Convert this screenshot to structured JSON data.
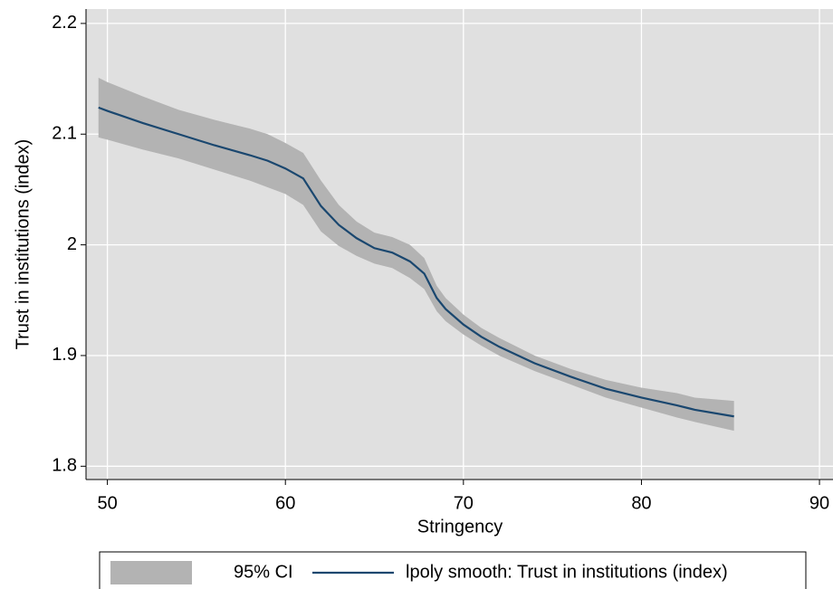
{
  "chart_data": {
    "type": "line",
    "x_label": "Stringency",
    "y_label": "Trust in institutions (index)",
    "x": [
      49.5,
      50,
      52,
      54,
      56,
      58,
      59,
      60,
      61,
      62,
      63,
      64,
      65,
      66,
      67,
      67.8,
      68.5,
      69,
      70,
      71,
      72,
      74,
      76,
      78,
      80,
      82,
      83,
      85.2
    ],
    "series": [
      {
        "name": "95% CI",
        "color": "#b3b3b3",
        "kind": "band",
        "upper": [
          2.151,
          2.147,
          2.134,
          2.122,
          2.113,
          2.105,
          2.1,
          2.092,
          2.083,
          2.058,
          2.036,
          2.021,
          2.011,
          2.007,
          2.0,
          1.988,
          1.963,
          1.952,
          1.937,
          1.925,
          1.916,
          1.9,
          1.888,
          1.878,
          1.871,
          1.866,
          1.862,
          1.859
        ],
        "lower": [
          2.097,
          2.095,
          2.086,
          2.078,
          2.068,
          2.058,
          2.052,
          2.046,
          2.036,
          2.012,
          1.999,
          1.99,
          1.983,
          1.979,
          1.97,
          1.96,
          1.94,
          1.931,
          1.919,
          1.909,
          1.9,
          1.886,
          1.874,
          1.862,
          1.853,
          1.844,
          1.84,
          1.832
        ]
      },
      {
        "name": "lpoly smooth: Trust in institutions (index)",
        "color": "#1a476f",
        "kind": "line",
        "values": [
          2.124,
          2.121,
          2.11,
          2.1,
          2.09,
          2.081,
          2.076,
          2.069,
          2.06,
          2.035,
          2.018,
          2.006,
          1.997,
          1.993,
          1.985,
          1.974,
          1.952,
          1.942,
          1.928,
          1.917,
          1.908,
          1.893,
          1.881,
          1.87,
          1.862,
          1.855,
          1.851,
          1.845
        ]
      }
    ],
    "xlim": [
      48.8,
      90.76
    ],
    "xticks": [
      50,
      60,
      70,
      80,
      90
    ],
    "ylim": [
      1.788,
      2.213
    ],
    "yticks": [
      1.8,
      1.9,
      2,
      2.1,
      2.2
    ],
    "grid": true,
    "legend": "bottom"
  }
}
